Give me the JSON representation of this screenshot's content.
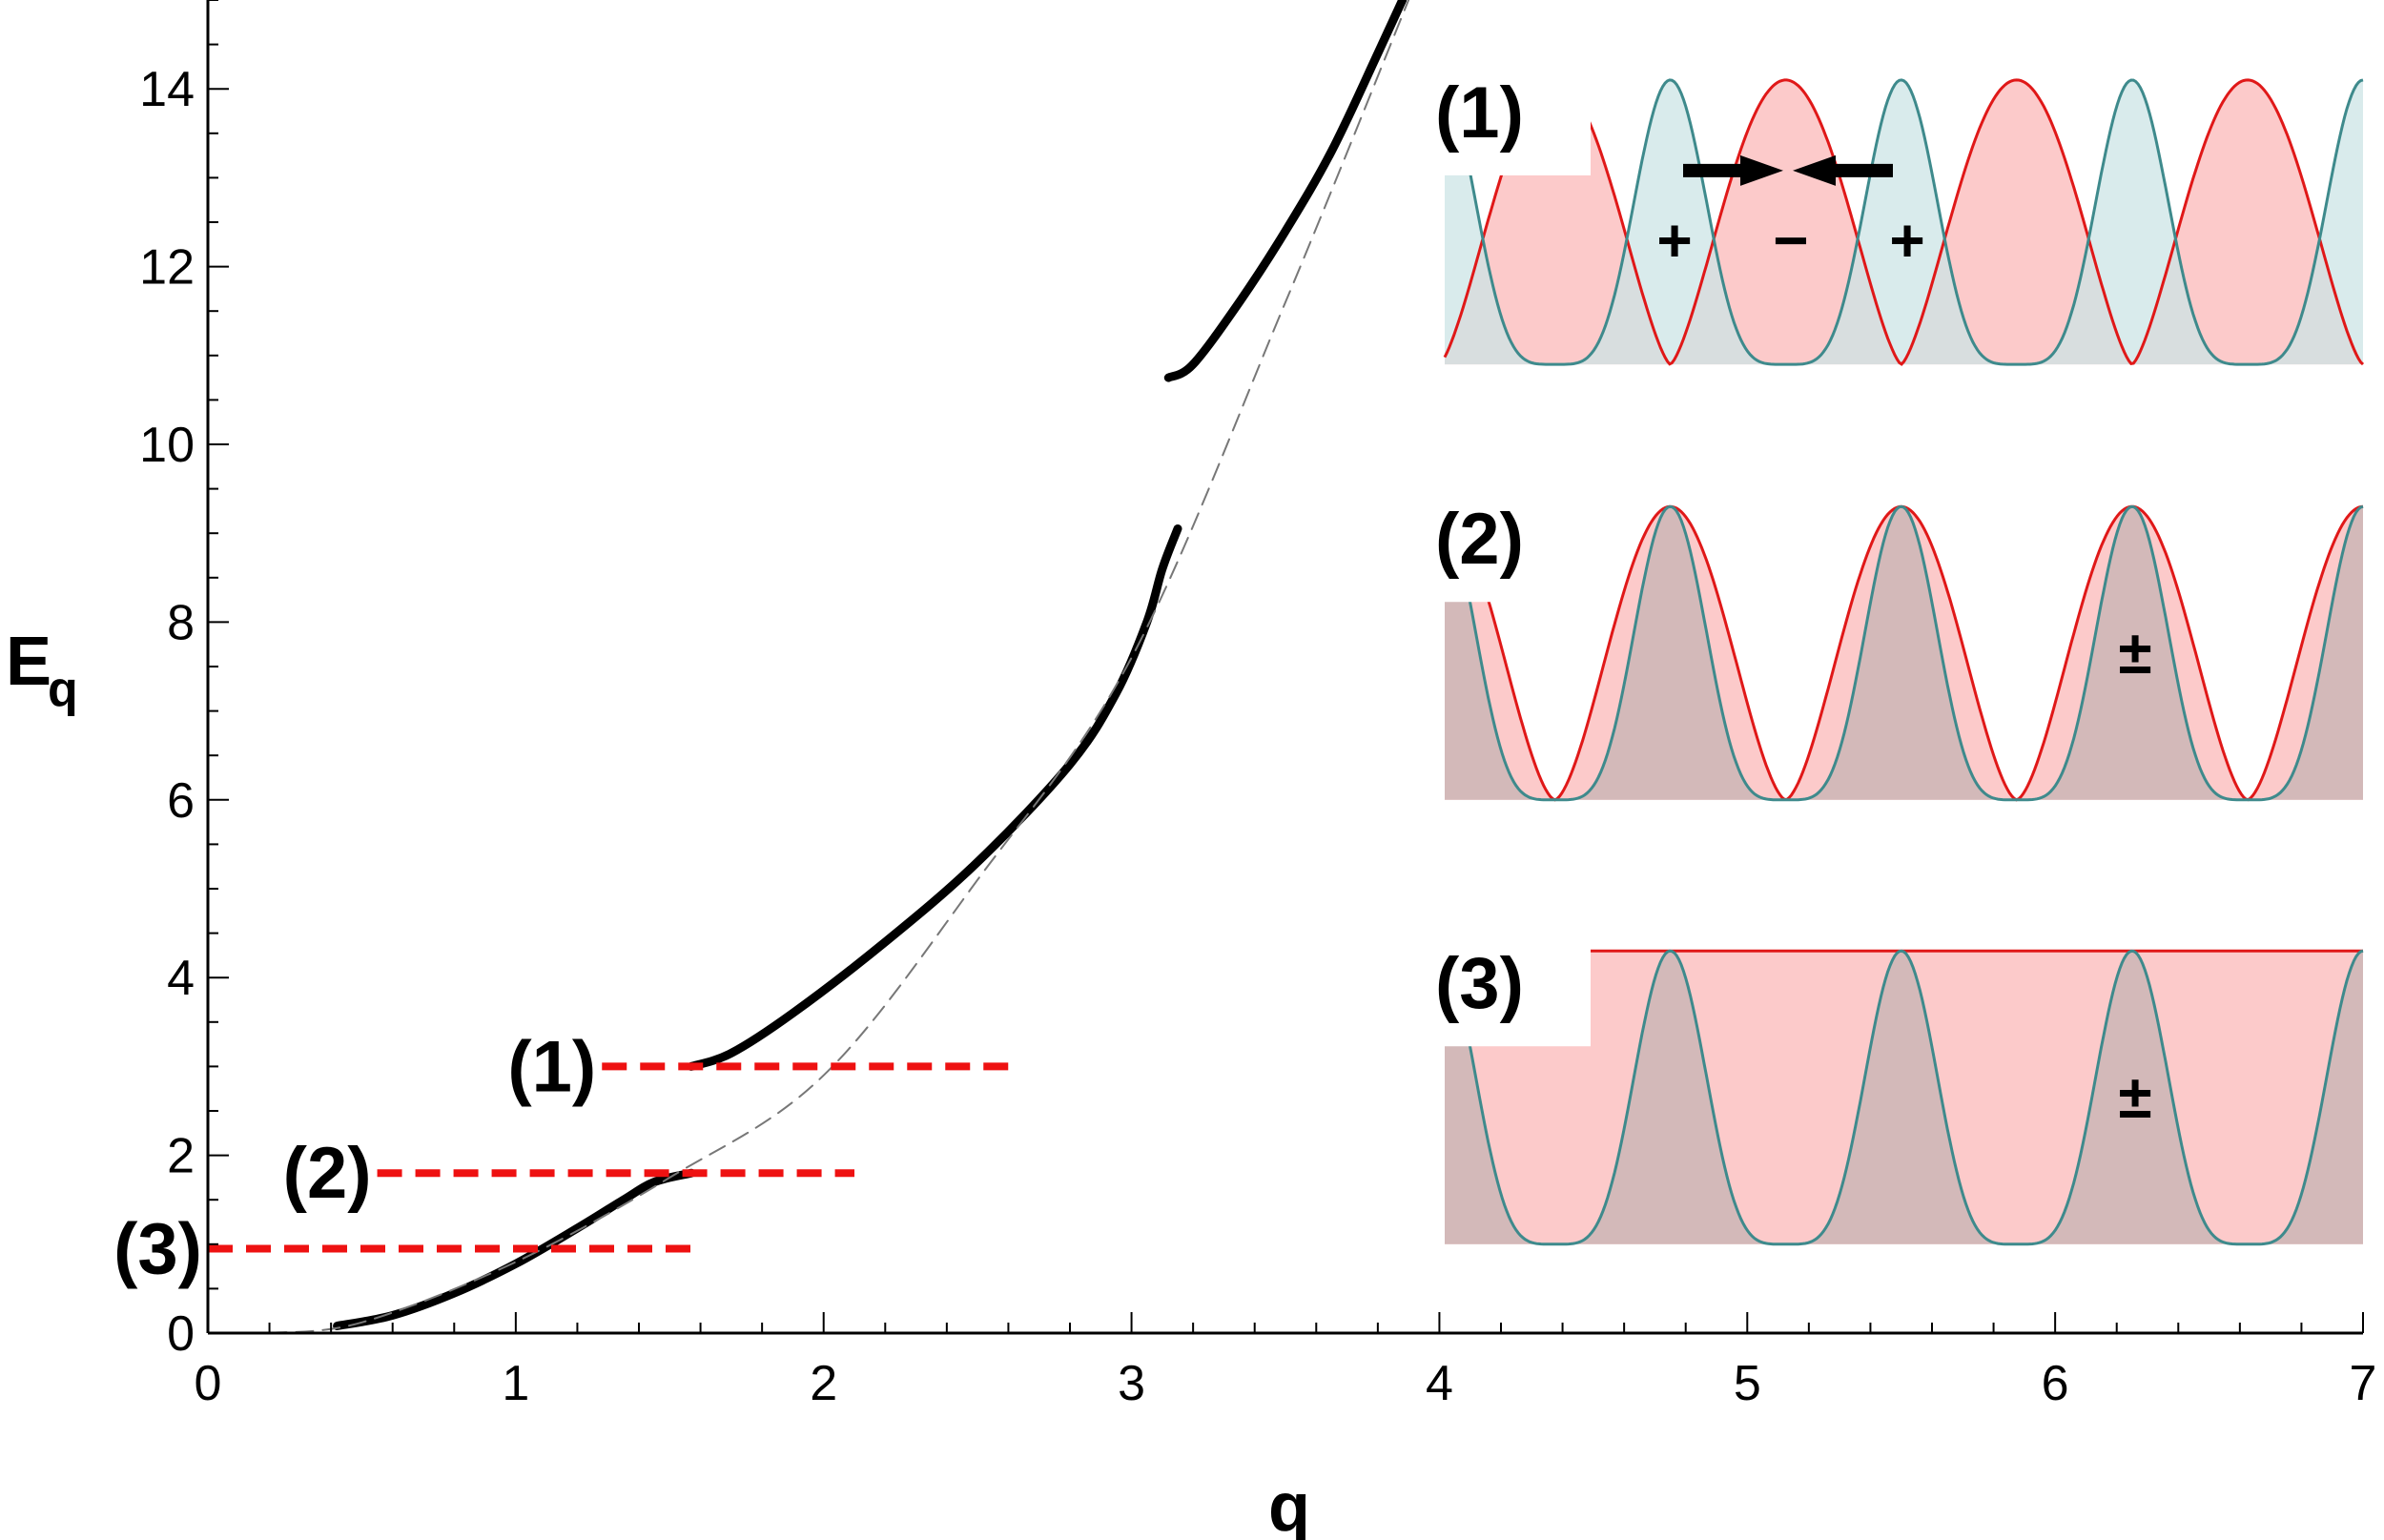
{
  "chart_data": {
    "type": "line",
    "xlabel": "q",
    "ylabel": "E",
    "ylabel_sub": "q",
    "xlim": [
      0,
      7
    ],
    "ylim": [
      0,
      15
    ],
    "xticks": [
      0,
      1,
      2,
      3,
      4,
      5,
      6,
      7
    ],
    "yticks": [
      0,
      2,
      4,
      6,
      8,
      10,
      12,
      14
    ],
    "grid": false,
    "series": [
      {
        "style": "solid-thick-black",
        "points": [
          [
            0.42,
            0.08
          ],
          [
            0.6,
            0.2
          ],
          [
            0.8,
            0.45
          ],
          [
            1.0,
            0.78
          ],
          [
            1.2,
            1.18
          ],
          [
            1.35,
            1.5
          ],
          [
            1.45,
            1.7
          ],
          [
            1.57,
            1.8
          ]
        ]
      },
      {
        "style": "solid-thick-black",
        "points": [
          [
            1.57,
            3.0
          ],
          [
            1.7,
            3.15
          ],
          [
            1.9,
            3.6
          ],
          [
            2.2,
            4.4
          ],
          [
            2.5,
            5.3
          ],
          [
            2.8,
            6.4
          ],
          [
            2.95,
            7.2
          ],
          [
            3.05,
            8.0
          ],
          [
            3.1,
            8.6
          ],
          [
            3.15,
            9.05
          ]
        ]
      },
      {
        "style": "solid-thick-black",
        "points": [
          [
            3.12,
            10.75
          ],
          [
            3.2,
            10.9
          ],
          [
            3.35,
            11.6
          ],
          [
            3.5,
            12.4
          ],
          [
            3.65,
            13.3
          ],
          [
            3.8,
            14.4
          ],
          [
            3.88,
            15.0
          ]
        ]
      },
      {
        "style": "dashed-thin-gray",
        "points": [
          [
            0.2,
            0.0
          ],
          [
            0.5,
            0.12
          ],
          [
            1.0,
            0.8
          ],
          [
            1.5,
            1.75
          ],
          [
            2.0,
            2.9
          ],
          [
            2.5,
            5.1
          ],
          [
            3.0,
            7.6
          ],
          [
            3.5,
            11.6
          ],
          [
            3.9,
            15.0
          ]
        ]
      }
    ],
    "levels": [
      {
        "label": "(1)",
        "y": 3.0,
        "x_start": 1.28,
        "x_end": 2.6
      },
      {
        "label": "(2)",
        "y": 1.8,
        "x_start": 0.55,
        "x_end": 2.1
      },
      {
        "label": "(3)",
        "y": 0.95,
        "x_start": 0.0,
        "x_end": 1.6
      }
    ],
    "insets": [
      {
        "label": "(1)",
        "signs": [
          "+",
          "−",
          "+"
        ],
        "top_y": 14.1,
        "bottom_y": 10.9
      },
      {
        "label": "(2)",
        "signs": [
          "±"
        ],
        "top_y": 9.3,
        "bottom_y": 6.0
      },
      {
        "label": "(3)",
        "signs": [
          "±"
        ],
        "top_y": 4.3,
        "bottom_y": 1.0
      }
    ],
    "colors": {
      "curve": "#000000",
      "asymptote": "#777777",
      "level": "#ee1111",
      "red_fill": "#fccaca",
      "red_line": "#e01818",
      "teal_fill": "#cce4e6",
      "teal_line": "#3e8a8c",
      "overlap_fill": "#d3b9b9"
    }
  }
}
